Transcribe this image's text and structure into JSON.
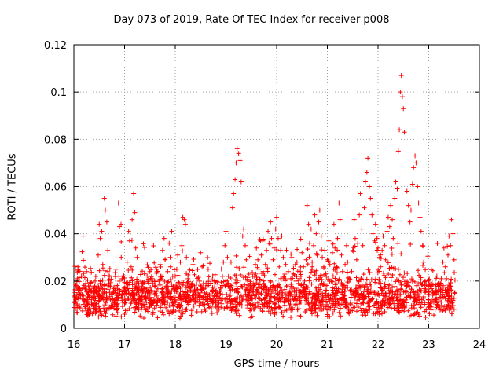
{
  "chart_data": {
    "type": "scatter",
    "title": "Day 073 of 2019, Rate Of TEC Index for receiver p008",
    "xlabel": "GPS time / hours",
    "ylabel": "ROTI / TECUs",
    "xlim": [
      16,
      24
    ],
    "ylim": [
      0,
      0.12
    ],
    "x_ticks": [
      "16",
      "17",
      "18",
      "19",
      "20",
      "21",
      "22",
      "23",
      "24"
    ],
    "y_ticks": [
      "0",
      "0.02",
      "0.04",
      "0.06",
      "0.08",
      "0.1",
      "0.12"
    ],
    "grid": true,
    "marker": "+",
    "marker_color": "#ff0000",
    "data_range_x": [
      16.0,
      23.5
    ],
    "peak_events": [
      {
        "x": 16.6,
        "y": 0.055
      },
      {
        "x": 17.2,
        "y": 0.057
      },
      {
        "x": 18.2,
        "y": 0.047
      },
      {
        "x": 19.25,
        "y": 0.076
      },
      {
        "x": 20.0,
        "y": 0.047
      },
      {
        "x": 20.85,
        "y": 0.05
      },
      {
        "x": 21.8,
        "y": 0.072
      },
      {
        "x": 22.45,
        "y": 0.107
      },
      {
        "x": 22.7,
        "y": 0.073
      },
      {
        "x": 23.45,
        "y": 0.046
      }
    ],
    "series": [
      {
        "name": "ROTI",
        "points": [
          [
            16.02,
            0.011
          ],
          [
            16.05,
            0.018
          ],
          [
            16.08,
            0.026
          ],
          [
            16.1,
            0.009
          ],
          [
            16.13,
            0.014
          ],
          [
            16.15,
            0.022
          ],
          [
            16.18,
            0.039
          ],
          [
            16.2,
            0.012
          ],
          [
            16.22,
            0.017
          ],
          [
            16.25,
            0.024
          ],
          [
            16.28,
            0.008
          ],
          [
            16.3,
            0.013
          ],
          [
            16.33,
            0.019
          ],
          [
            16.35,
            0.01
          ],
          [
            16.38,
            0.015
          ],
          [
            16.4,
            0.011
          ],
          [
            16.42,
            0.02
          ],
          [
            16.45,
            0.009
          ],
          [
            16.48,
            0.031
          ],
          [
            16.5,
            0.044
          ],
          [
            16.52,
            0.038
          ],
          [
            16.55,
            0.041
          ],
          [
            16.57,
            0.027
          ],
          [
            16.6,
            0.055
          ],
          [
            16.62,
            0.05
          ],
          [
            16.65,
            0.045
          ],
          [
            16.67,
            0.033
          ],
          [
            16.7,
            0.022
          ],
          [
            16.72,
            0.012
          ],
          [
            16.75,
            0.009
          ],
          [
            16.78,
            0.015
          ],
          [
            16.8,
            0.011
          ],
          [
            16.83,
            0.018
          ],
          [
            16.85,
            0.013
          ],
          [
            16.88,
            0.053
          ],
          [
            16.9,
            0.043
          ],
          [
            16.93,
            0.044
          ],
          [
            16.95,
            0.021
          ],
          [
            16.97,
            0.016
          ],
          [
            17.0,
            0.006
          ],
          [
            17.02,
            0.011
          ],
          [
            17.05,
            0.028
          ],
          [
            17.08,
            0.041
          ],
          [
            17.1,
            0.037
          ],
          [
            17.13,
            0.026
          ],
          [
            17.15,
            0.046
          ],
          [
            17.18,
            0.057
          ],
          [
            17.2,
            0.049
          ],
          [
            17.22,
            0.034
          ],
          [
            17.25,
            0.03
          ],
          [
            17.28,
            0.019
          ],
          [
            17.3,
            0.012
          ],
          [
            17.33,
            0.008
          ],
          [
            17.35,
            0.014
          ],
          [
            17.38,
            0.01
          ],
          [
            17.4,
            0.017
          ],
          [
            17.43,
            0.011
          ],
          [
            17.45,
            0.015
          ],
          [
            17.48,
            0.009
          ],
          [
            17.5,
            0.013
          ],
          [
            17.53,
            0.016
          ],
          [
            17.55,
            0.021
          ],
          [
            17.58,
            0.012
          ],
          [
            17.6,
            0.018
          ],
          [
            17.63,
            0.025
          ],
          [
            17.65,
            0.011
          ],
          [
            17.68,
            0.02
          ],
          [
            17.7,
            0.027
          ],
          [
            17.73,
            0.015
          ],
          [
            17.75,
            0.033
          ],
          [
            17.78,
            0.038
          ],
          [
            17.8,
            0.029
          ],
          [
            17.83,
            0.017
          ],
          [
            17.85,
            0.024
          ],
          [
            17.88,
            0.036
          ],
          [
            17.9,
            0.03
          ],
          [
            17.93,
            0.041
          ],
          [
            17.95,
            0.022
          ],
          [
            17.98,
            0.018
          ],
          [
            18.0,
            0.013
          ],
          [
            18.03,
            0.025
          ],
          [
            18.05,
            0.031
          ],
          [
            18.08,
            0.019
          ],
          [
            18.1,
            0.028
          ],
          [
            18.13,
            0.035
          ],
          [
            18.15,
            0.047
          ],
          [
            18.18,
            0.046
          ],
          [
            18.2,
            0.044
          ],
          [
            18.22,
            0.03
          ],
          [
            18.25,
            0.021
          ],
          [
            18.28,
            0.016
          ],
          [
            18.3,
            0.012
          ],
          [
            18.33,
            0.019
          ],
          [
            18.35,
            0.027
          ],
          [
            18.38,
            0.018
          ],
          [
            18.4,
            0.011
          ],
          [
            18.43,
            0.007
          ],
          [
            18.45,
            0.015
          ],
          [
            18.48,
            0.02
          ],
          [
            18.5,
            0.032
          ],
          [
            18.53,
            0.026
          ],
          [
            18.55,
            0.013
          ],
          [
            18.58,
            0.008
          ],
          [
            18.6,
            0.012
          ],
          [
            18.63,
            0.018
          ],
          [
            18.65,
            0.025
          ],
          [
            18.68,
            0.014
          ],
          [
            18.7,
            0.009
          ],
          [
            18.73,
            0.012
          ],
          [
            18.75,
            0.016
          ],
          [
            18.78,
            0.02
          ],
          [
            18.8,
            0.011
          ],
          [
            18.83,
            0.015
          ],
          [
            18.85,
            0.009
          ],
          [
            18.88,
            0.013
          ],
          [
            18.9,
            0.017
          ],
          [
            18.93,
            0.022
          ],
          [
            18.95,
            0.028
          ],
          [
            18.98,
            0.035
          ],
          [
            19.0,
            0.041
          ],
          [
            19.03,
            0.03
          ],
          [
            19.05,
            0.022
          ],
          [
            19.08,
            0.017
          ],
          [
            19.1,
            0.028
          ],
          [
            19.13,
            0.051
          ],
          [
            19.15,
            0.057
          ],
          [
            19.18,
            0.063
          ],
          [
            19.2,
            0.07
          ],
          [
            19.22,
            0.076
          ],
          [
            19.25,
            0.074
          ],
          [
            19.28,
            0.071
          ],
          [
            19.3,
            0.062
          ],
          [
            19.33,
            0.039
          ],
          [
            19.35,
            0.042
          ],
          [
            19.38,
            0.035
          ],
          [
            19.4,
            0.029
          ],
          [
            19.43,
            0.02
          ],
          [
            19.45,
            0.014
          ],
          [
            19.48,
            0.01
          ],
          [
            19.5,
            0.016
          ],
          [
            19.53,
            0.022
          ],
          [
            19.55,
            0.018
          ],
          [
            19.58,
            0.027
          ],
          [
            19.6,
            0.034
          ],
          [
            19.63,
            0.029
          ],
          [
            19.65,
            0.025
          ],
          [
            19.68,
            0.037
          ],
          [
            19.7,
            0.031
          ],
          [
            19.73,
            0.024
          ],
          [
            19.75,
            0.019
          ],
          [
            19.78,
            0.027
          ],
          [
            19.8,
            0.033
          ],
          [
            19.83,
            0.041
          ],
          [
            19.85,
            0.036
          ],
          [
            19.88,
            0.045
          ],
          [
            19.9,
            0.038
          ],
          [
            19.93,
            0.029
          ],
          [
            19.95,
            0.034
          ],
          [
            19.98,
            0.042
          ],
          [
            20.0,
            0.047
          ],
          [
            20.03,
            0.038
          ],
          [
            20.05,
            0.026
          ],
          [
            20.08,
            0.033
          ],
          [
            20.1,
            0.039
          ],
          [
            20.13,
            0.03
          ],
          [
            20.15,
            0.022
          ],
          [
            20.18,
            0.027
          ],
          [
            20.2,
            0.018
          ],
          [
            20.23,
            0.024
          ],
          [
            20.25,
            0.015
          ],
          [
            20.28,
            0.021
          ],
          [
            20.3,
            0.03
          ],
          [
            20.33,
            0.023
          ],
          [
            20.35,
            0.016
          ],
          [
            20.38,
            0.02
          ],
          [
            20.4,
            0.028
          ],
          [
            20.43,
            0.019
          ],
          [
            20.45,
            0.013
          ],
          [
            20.48,
            0.022
          ],
          [
            20.5,
            0.032
          ],
          [
            20.53,
            0.026
          ],
          [
            20.55,
            0.02
          ],
          [
            20.58,
            0.029
          ],
          [
            20.6,
            0.052
          ],
          [
            20.63,
            0.044
          ],
          [
            20.65,
            0.036
          ],
          [
            20.68,
            0.042
          ],
          [
            20.7,
            0.028
          ],
          [
            20.73,
            0.035
          ],
          [
            20.75,
            0.048
          ],
          [
            20.78,
            0.04
          ],
          [
            20.8,
            0.031
          ],
          [
            20.83,
            0.045
          ],
          [
            20.85,
            0.05
          ],
          [
            20.88,
            0.039
          ],
          [
            20.9,
            0.03
          ],
          [
            20.93,
            0.026
          ],
          [
            20.95,
            0.033
          ],
          [
            20.98,
            0.022
          ],
          [
            21.0,
            0.029
          ],
          [
            21.03,
            0.037
          ],
          [
            21.05,
            0.027
          ],
          [
            21.08,
            0.02
          ],
          [
            21.1,
            0.032
          ],
          [
            21.13,
            0.044
          ],
          [
            21.15,
            0.034
          ],
          [
            21.18,
            0.026
          ],
          [
            21.2,
            0.038
          ],
          [
            21.23,
            0.053
          ],
          [
            21.25,
            0.046
          ],
          [
            21.28,
            0.031
          ],
          [
            21.3,
            0.024
          ],
          [
            21.33,
            0.018
          ],
          [
            21.35,
            0.027
          ],
          [
            21.38,
            0.035
          ],
          [
            21.4,
            0.028
          ],
          [
            21.43,
            0.021
          ],
          [
            21.45,
            0.016
          ],
          [
            21.48,
            0.024
          ],
          [
            21.5,
            0.033
          ],
          [
            21.53,
            0.046
          ],
          [
            21.55,
            0.038
          ],
          [
            21.58,
            0.029
          ],
          [
            21.6,
            0.036
          ],
          [
            21.63,
            0.048
          ],
          [
            21.65,
            0.057
          ],
          [
            21.68,
            0.042
          ],
          [
            21.7,
            0.035
          ],
          [
            21.73,
            0.051
          ],
          [
            21.75,
            0.062
          ],
          [
            21.78,
            0.066
          ],
          [
            21.8,
            0.072
          ],
          [
            21.83,
            0.06
          ],
          [
            21.85,
            0.055
          ],
          [
            21.88,
            0.048
          ],
          [
            21.9,
            0.04
          ],
          [
            21.93,
            0.037
          ],
          [
            21.95,
            0.044
          ],
          [
            21.98,
            0.038
          ],
          [
            22.0,
            0.034
          ],
          [
            22.03,
            0.03
          ],
          [
            22.05,
            0.026
          ],
          [
            22.08,
            0.033
          ],
          [
            22.1,
            0.039
          ],
          [
            22.13,
            0.035
          ],
          [
            22.15,
            0.029
          ],
          [
            22.18,
            0.041
          ],
          [
            22.2,
            0.047
          ],
          [
            22.23,
            0.043
          ],
          [
            22.25,
            0.052
          ],
          [
            22.28,
            0.046
          ],
          [
            22.3,
            0.038
          ],
          [
            22.33,
            0.055
          ],
          [
            22.35,
            0.062
          ],
          [
            22.38,
            0.059
          ],
          [
            22.4,
            0.075
          ],
          [
            22.42,
            0.084
          ],
          [
            22.44,
            0.1
          ],
          [
            22.46,
            0.107
          ],
          [
            22.48,
            0.098
          ],
          [
            22.5,
            0.093
          ],
          [
            22.52,
            0.083
          ],
          [
            22.55,
            0.067
          ],
          [
            22.57,
            0.058
          ],
          [
            22.6,
            0.052
          ],
          [
            22.63,
            0.045
          ],
          [
            22.65,
            0.05
          ],
          [
            22.68,
            0.061
          ],
          [
            22.7,
            0.068
          ],
          [
            22.73,
            0.073
          ],
          [
            22.75,
            0.07
          ],
          [
            22.78,
            0.06
          ],
          [
            22.8,
            0.053
          ],
          [
            22.83,
            0.047
          ],
          [
            22.85,
            0.041
          ],
          [
            22.88,
            0.035
          ],
          [
            22.9,
            0.028
          ],
          [
            22.93,
            0.02
          ],
          [
            23.0,
            0.012
          ],
          [
            23.03,
            0.018
          ],
          [
            23.05,
            0.009
          ],
          [
            23.08,
            0.014
          ],
          [
            23.1,
            0.011
          ],
          [
            23.15,
            0.016
          ],
          [
            23.2,
            0.013
          ],
          [
            23.25,
            0.021
          ],
          [
            23.28,
            0.028
          ],
          [
            23.3,
            0.034
          ],
          [
            23.33,
            0.026
          ],
          [
            23.35,
            0.021
          ],
          [
            23.38,
            0.031
          ],
          [
            23.4,
            0.039
          ],
          [
            23.43,
            0.035
          ],
          [
            23.45,
            0.046
          ],
          [
            23.48,
            0.04
          ],
          [
            23.5,
            0.029
          ]
        ]
      }
    ]
  }
}
